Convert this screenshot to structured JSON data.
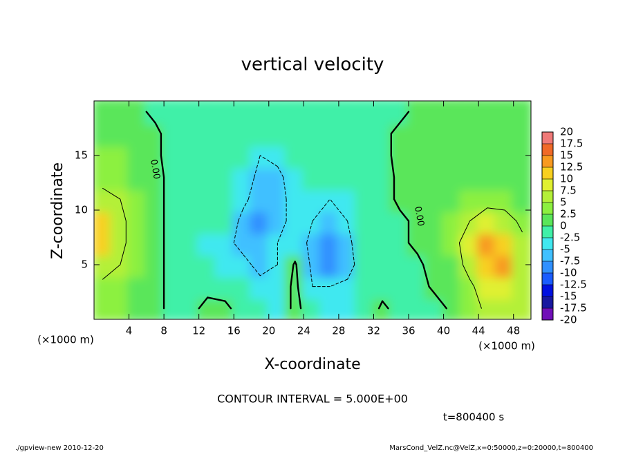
{
  "chart_data": {
    "type": "contour",
    "title": "vertical velocity",
    "xlabel": "X-coordinate",
    "ylabel": "Z-coordinate",
    "x_unit_label": "(×1000 m)",
    "y_unit_label": "(×1000 m)",
    "xlim": [
      0,
      50
    ],
    "ylim": [
      0,
      20
    ],
    "xticks": [
      4,
      8,
      12,
      16,
      20,
      24,
      28,
      32,
      36,
      40,
      44,
      48
    ],
    "yticks": [
      5,
      10,
      15
    ],
    "x": [
      1,
      3,
      5,
      7,
      9,
      11,
      13,
      15,
      17,
      19,
      21,
      23,
      25,
      27,
      29,
      31,
      33,
      35,
      37,
      39,
      41,
      43,
      45,
      47,
      49
    ],
    "z": [
      1,
      3,
      5,
      7,
      9,
      11,
      13,
      15,
      17,
      19
    ],
    "values": [
      [
        3,
        3,
        2,
        1,
        -1,
        -1,
        1,
        0.5,
        -1,
        -2,
        -3,
        1,
        -2,
        -3,
        -3,
        -2,
        0.5,
        -1,
        -1,
        -1,
        0.5,
        3,
        6,
        7,
        5
      ],
      [
        4,
        4,
        2,
        1,
        -1,
        -1,
        -1,
        -1,
        -2,
        -4,
        -3,
        1,
        -5,
        -5,
        -4,
        -2,
        -1,
        -1,
        -1,
        0.5,
        1,
        4,
        8,
        8,
        6
      ],
      [
        7,
        5,
        3,
        1,
        -1,
        -2,
        -2,
        -3,
        -4,
        -6,
        -5,
        0.5,
        -6,
        -8,
        -7,
        -2,
        -1,
        -1,
        -0.5,
        1,
        2,
        7,
        12,
        14,
        7
      ],
      [
        11,
        6,
        3,
        1,
        -1,
        -2,
        -3,
        -4,
        -6,
        -7,
        -5,
        -3,
        -6,
        -8,
        -6,
        -2,
        -1,
        -0.5,
        0.5,
        1,
        3,
        8,
        13,
        12,
        6
      ],
      [
        12,
        6,
        3,
        1,
        -1,
        -1,
        -2,
        -2,
        -6,
        -8,
        -6,
        -4,
        -5,
        -6,
        -5,
        -2,
        -1,
        -0.5,
        0.5,
        2,
        3,
        5,
        8,
        7,
        4
      ],
      [
        6,
        5,
        3,
        1,
        -1,
        -1,
        -1,
        -1,
        -4,
        -7,
        -6,
        -4,
        -3,
        -5,
        -3,
        -2,
        -1,
        0.5,
        1,
        2,
        2,
        3,
        3,
        3,
        2
      ],
      [
        4,
        4,
        2,
        1,
        -1,
        -1,
        -1,
        -1,
        -3,
        -6,
        -6,
        -3,
        -2,
        -2,
        -2,
        -1,
        -1,
        0.5,
        1,
        2,
        2,
        2,
        2,
        2,
        2
      ],
      [
        3,
        3,
        2,
        0.5,
        -1,
        -1,
        -1,
        -1,
        -2,
        -5,
        -4,
        -2,
        -1,
        -1,
        -1,
        -1,
        -0.5,
        0.5,
        1,
        2,
        2,
        2,
        2,
        2,
        1
      ],
      [
        2,
        2,
        1,
        0.5,
        -1,
        -1,
        -1,
        -1,
        -1,
        -2,
        -2,
        -1,
        -1,
        -1,
        -1,
        -1,
        -0.5,
        0.5,
        1,
        1,
        1,
        1,
        1,
        1,
        1
      ],
      [
        1,
        1,
        0.5,
        -0.5,
        -1,
        -1,
        -1,
        -1,
        -1,
        -1,
        -1,
        -1,
        -1,
        -1,
        -1,
        -1,
        -1,
        -0.5,
        0.5,
        1,
        1,
        1,
        1,
        1,
        1
      ]
    ],
    "contour_levels": [
      -5,
      0,
      5
    ],
    "contour_labels": [
      "0.00",
      "0.00"
    ],
    "colorbar_levels": [
      -20,
      -17.5,
      -15,
      -12.5,
      -10,
      -7.5,
      -5,
      -2.5,
      0,
      2.5,
      5,
      7.5,
      10,
      12.5,
      15,
      17.5,
      20
    ],
    "colorbar_colors": [
      "#7010b8",
      "#1818a0",
      "#0010e0",
      "#1a5cff",
      "#3090ff",
      "#40c0ff",
      "#40e8f0",
      "#40f0a8",
      "#5ae65a",
      "#8cf040",
      "#b4f038",
      "#e0f030",
      "#f8d020",
      "#f89a20",
      "#f06a28",
      "#f07a78",
      "#f0a8a8"
    ],
    "contour_interval_label": "CONTOUR INTERVAL = 5.000E+00",
    "time_label": "t=800400 s",
    "footer_left": "./gpview-new  2010-12-20",
    "footer_right": "MarsCond_VelZ.nc@VelZ,x=0:50000,z=0:20000,t=800400"
  }
}
